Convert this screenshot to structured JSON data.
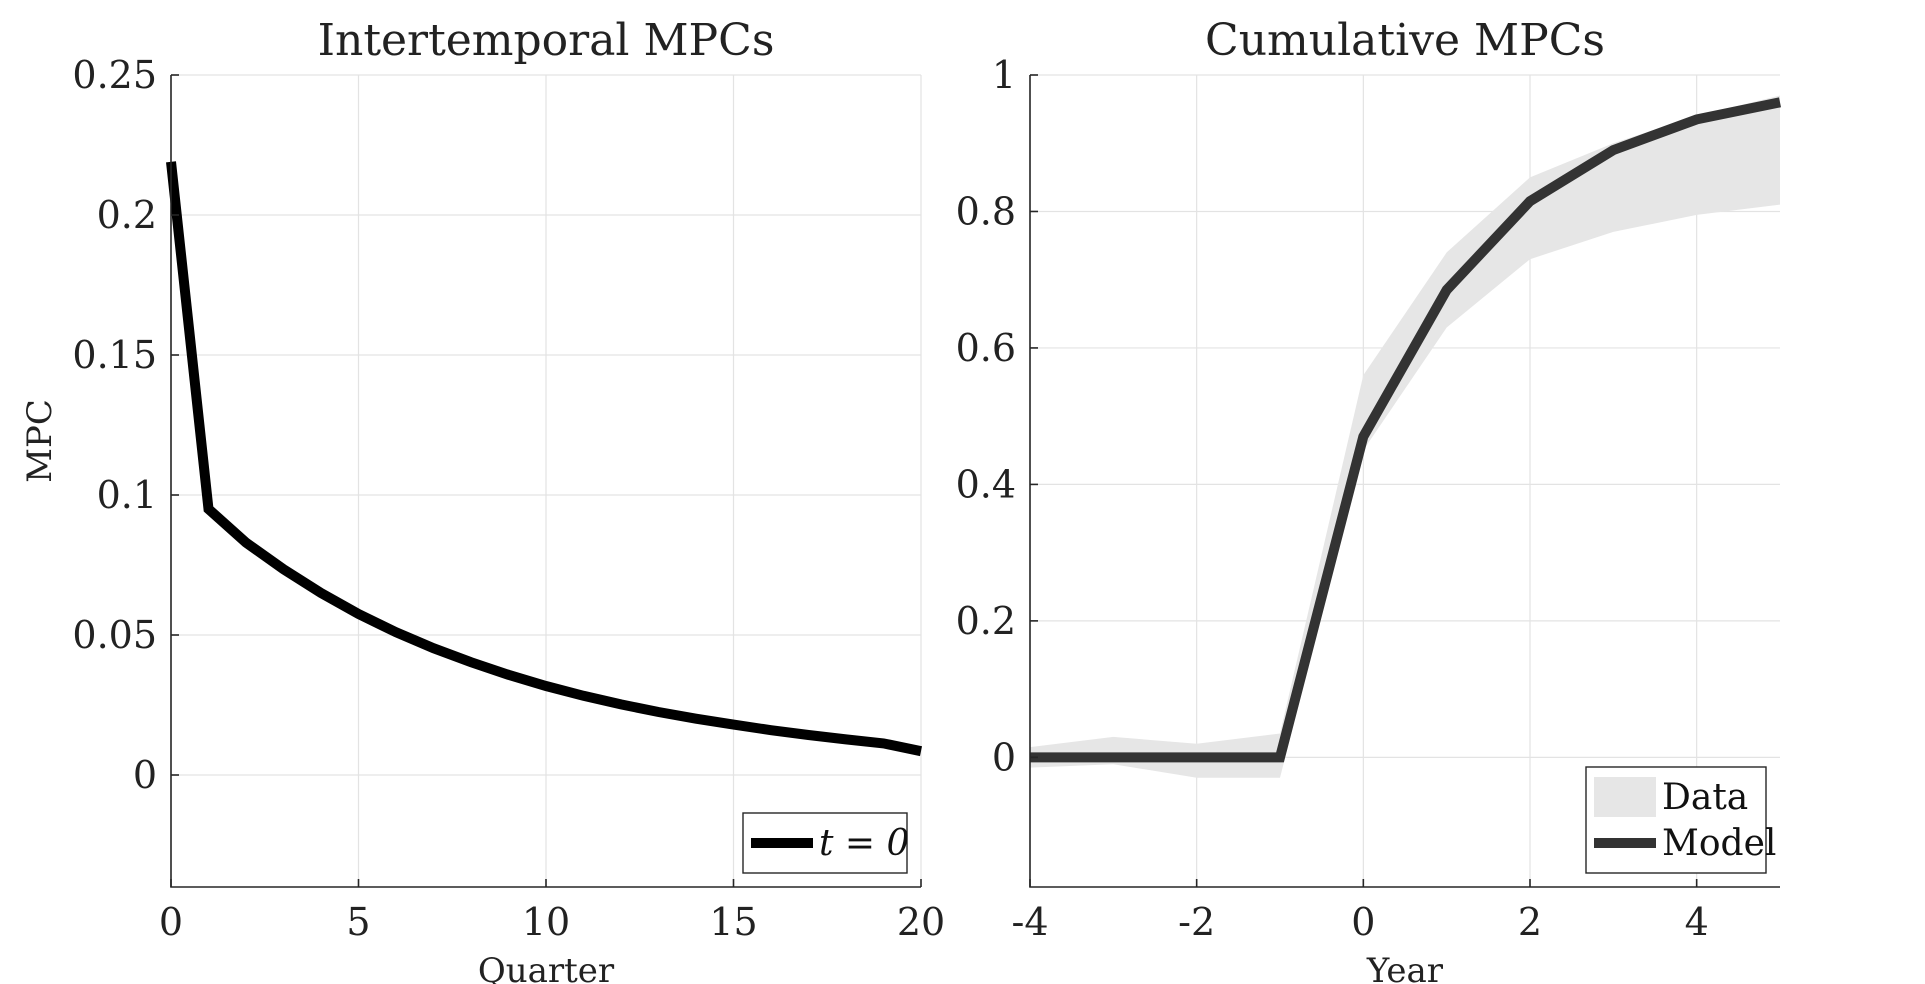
{
  "chart_data": [
    {
      "type": "line",
      "title": "Intertemporal MPCs",
      "xlabel": "Quarter",
      "ylabel": "MPC",
      "xlim": [
        0,
        20
      ],
      "ylim": [
        -0.04,
        0.25
      ],
      "xticks": [
        0,
        5,
        10,
        15,
        20
      ],
      "xtick_labels": [
        "0",
        "5",
        "10",
        "15",
        "20"
      ],
      "yticks": [
        0,
        0.05,
        0.1,
        0.15,
        0.2,
        0.25
      ],
      "ytick_labels": [
        "0",
        "0.05",
        "0.1",
        "0.15",
        "0.2",
        "0.25"
      ],
      "grid": true,
      "legend": "bottom-right",
      "series": [
        {
          "name": "t = 0",
          "color": "#000000",
          "x": [
            0,
            1,
            2,
            3,
            4,
            5,
            6,
            7,
            8,
            9,
            10,
            11,
            12,
            13,
            14,
            15,
            16,
            17,
            18,
            19,
            20
          ],
          "y": [
            0.219,
            0.095,
            0.083,
            0.0735,
            0.065,
            0.0575,
            0.051,
            0.0453,
            0.0403,
            0.0358,
            0.0318,
            0.0283,
            0.0252,
            0.0225,
            0.0201,
            0.018,
            0.016,
            0.0143,
            0.0127,
            0.0113,
            0.0085
          ]
        }
      ]
    },
    {
      "type": "line",
      "title": "Cumulative MPCs",
      "xlabel": "Year",
      "ylabel": "",
      "xlim": [
        -4,
        5
      ],
      "ylim": [
        -0.19,
        1
      ],
      "xticks": [
        -4,
        -2,
        0,
        2,
        4
      ],
      "xtick_labels": [
        "-4",
        "-2",
        "0",
        "2",
        "4"
      ],
      "yticks": [
        0,
        0.2,
        0.4,
        0.6,
        0.8,
        1
      ],
      "ytick_labels": [
        "0",
        "0.2",
        "0.4",
        "0.6",
        "0.8",
        "1"
      ],
      "grid": true,
      "legend": "bottom-right",
      "band": {
        "name": "Data",
        "color": "#e6e6e6",
        "x": [
          -4,
          -3,
          -2,
          -1,
          0,
          1,
          2,
          3,
          4,
          5
        ],
        "upper": [
          0.015,
          0.03,
          0.02,
          0.035,
          0.56,
          0.74,
          0.85,
          0.9,
          0.94,
          0.97
        ],
        "lower": [
          -0.015,
          -0.01,
          -0.03,
          -0.03,
          0.45,
          0.63,
          0.73,
          0.77,
          0.795,
          0.81
        ]
      },
      "series": [
        {
          "name": "Model",
          "color": "#333333",
          "x": [
            -4,
            -3,
            -2,
            -1,
            0,
            1,
            2,
            3,
            4,
            5
          ],
          "y": [
            0,
            0,
            0,
            0,
            0.47,
            0.685,
            0.815,
            0.89,
            0.935,
            0.96
          ]
        }
      ]
    }
  ]
}
